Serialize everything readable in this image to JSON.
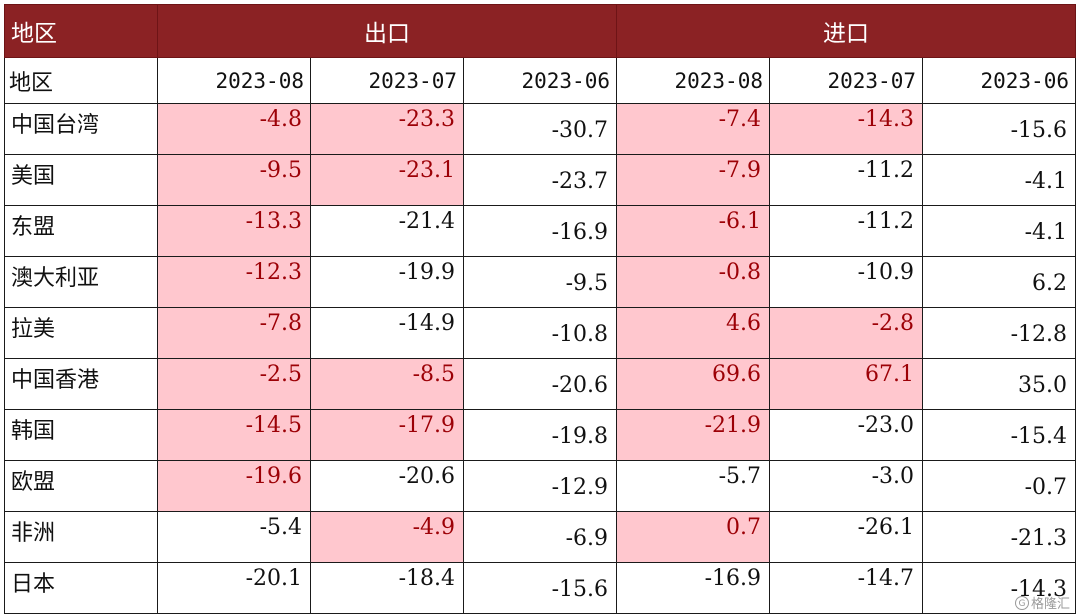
{
  "table": {
    "region_header": "地区",
    "groups": [
      "出口",
      "进口"
    ],
    "subheader_label": "地区",
    "dates": [
      "2023-08",
      "2023-07",
      "2023-06",
      "2023-08",
      "2023-07",
      "2023-06"
    ],
    "rows": [
      {
        "region": "中国台湾",
        "values": [
          "-4.8",
          "-23.3",
          "-30.7",
          "-7.4",
          "-14.3",
          "-15.6"
        ],
        "highlight": [
          true,
          true,
          false,
          true,
          true,
          false
        ]
      },
      {
        "region": "美国",
        "values": [
          "-9.5",
          "-23.1",
          "-23.7",
          "-7.9",
          "-11.2",
          "-4.1"
        ],
        "highlight": [
          true,
          true,
          false,
          true,
          false,
          false
        ]
      },
      {
        "region": "东盟",
        "values": [
          "-13.3",
          "-21.4",
          "-16.9",
          "-6.1",
          "-11.2",
          "-4.1"
        ],
        "highlight": [
          true,
          false,
          false,
          true,
          false,
          false
        ]
      },
      {
        "region": "澳大利亚",
        "values": [
          "-12.3",
          "-19.9",
          "-9.5",
          "-0.8",
          "-10.9",
          "6.2"
        ],
        "highlight": [
          true,
          false,
          false,
          true,
          false,
          false
        ]
      },
      {
        "region": "拉美",
        "values": [
          "-7.8",
          "-14.9",
          "-10.8",
          "4.6",
          "-2.8",
          "-12.8"
        ],
        "highlight": [
          true,
          false,
          false,
          true,
          true,
          false
        ]
      },
      {
        "region": "中国香港",
        "values": [
          "-2.5",
          "-8.5",
          "-20.6",
          "69.6",
          "67.1",
          "35.0"
        ],
        "highlight": [
          true,
          true,
          false,
          true,
          true,
          false
        ]
      },
      {
        "region": "韩国",
        "values": [
          "-14.5",
          "-17.9",
          "-19.8",
          "-21.9",
          "-23.0",
          "-15.4"
        ],
        "highlight": [
          true,
          true,
          false,
          true,
          false,
          false
        ]
      },
      {
        "region": "欧盟",
        "values": [
          "-19.6",
          "-20.6",
          "-12.9",
          "-5.7",
          "-3.0",
          "-0.7"
        ],
        "highlight": [
          true,
          false,
          false,
          false,
          false,
          false
        ]
      },
      {
        "region": "非洲",
        "values": [
          "-5.4",
          "-4.9",
          "-6.9",
          "0.7",
          "-26.1",
          "-21.3"
        ],
        "highlight": [
          false,
          true,
          false,
          true,
          false,
          false
        ]
      },
      {
        "region": "日本",
        "values": [
          "-20.1",
          "-18.4",
          "-15.6",
          "-16.9",
          "-14.7",
          "-14.3"
        ],
        "highlight": [
          false,
          false,
          false,
          false,
          false,
          false
        ]
      }
    ]
  },
  "colors": {
    "header_bg": "#8b2224",
    "highlight_bg": "#ffc7ce",
    "highlight_text": "#9c0006"
  },
  "watermark": "格隆汇"
}
